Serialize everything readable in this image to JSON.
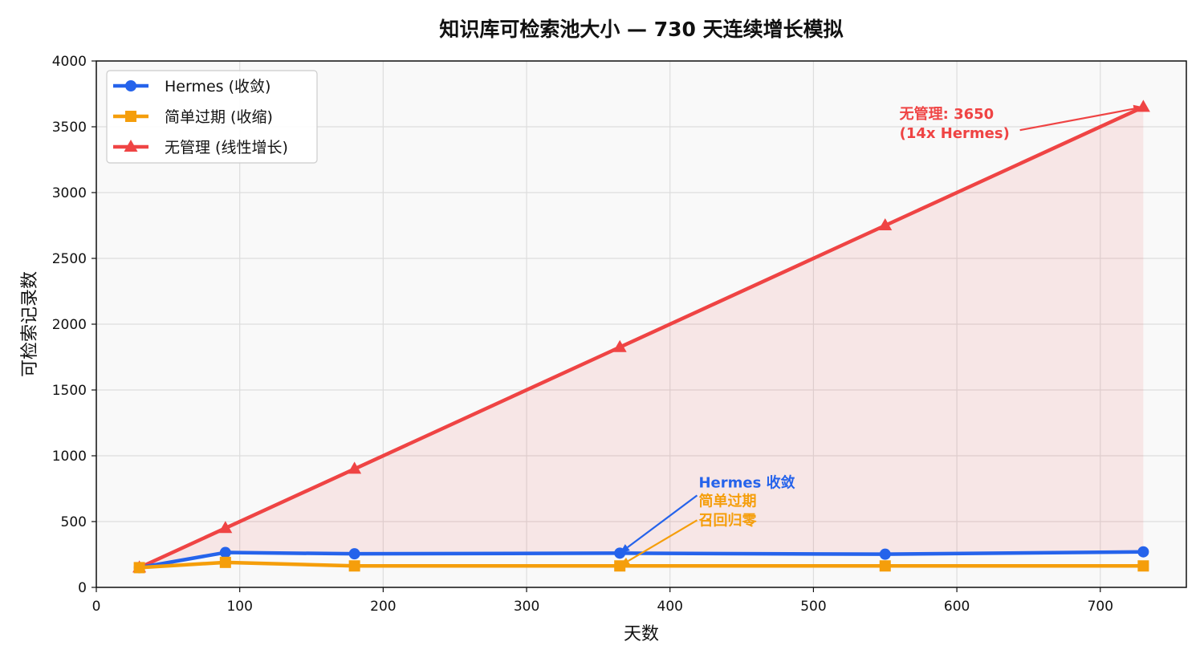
{
  "chart_data": {
    "type": "line",
    "title": "知识库可检索池大小 — 730 天连续增长模拟",
    "xlabel": "天数",
    "ylabel": "可检索记录数",
    "xlim": [
      0,
      760
    ],
    "ylim": [
      0,
      4000
    ],
    "xticks": [
      0,
      100,
      200,
      300,
      400,
      500,
      600,
      700
    ],
    "yticks": [
      0,
      500,
      1000,
      1500,
      2000,
      2500,
      3000,
      3500,
      4000
    ],
    "grid": true,
    "legend_position": "top-left",
    "x": [
      30,
      90,
      180,
      365,
      550,
      730
    ],
    "series": [
      {
        "name": "Hermes (收敛)",
        "color": "#2563eb",
        "marker": "circle",
        "values": [
          150,
          265,
          255,
          260,
          252,
          270
        ]
      },
      {
        "name": "简单过期 (收缩)",
        "color": "#f59e0b",
        "marker": "square",
        "values": [
          150,
          190,
          163,
          163,
          163,
          163
        ]
      },
      {
        "name": "无管理 (线性增长)",
        "color": "#ef4444",
        "marker": "triangle",
        "values": [
          150,
          450,
          900,
          1825,
          2750,
          3650
        ],
        "fill": true
      }
    ],
    "annotations": [
      {
        "lines": [
          "无管理: 3650",
          "(14x Hermes)"
        ],
        "color": "#ef4444",
        "text_at": [
          560,
          3560
        ],
        "arrow_to": [
          730,
          3650
        ]
      },
      {
        "lines": [
          "Hermes 收敛"
        ],
        "color": "#2563eb",
        "text_at": [
          420,
          760
        ],
        "arrow_to": [
          365,
          260
        ]
      },
      {
        "lines": [
          "简单过期",
          "召回归零"
        ],
        "color": "#f59e0b",
        "text_at": [
          420,
          620
        ],
        "arrow_to": [
          365,
          163
        ]
      }
    ]
  }
}
